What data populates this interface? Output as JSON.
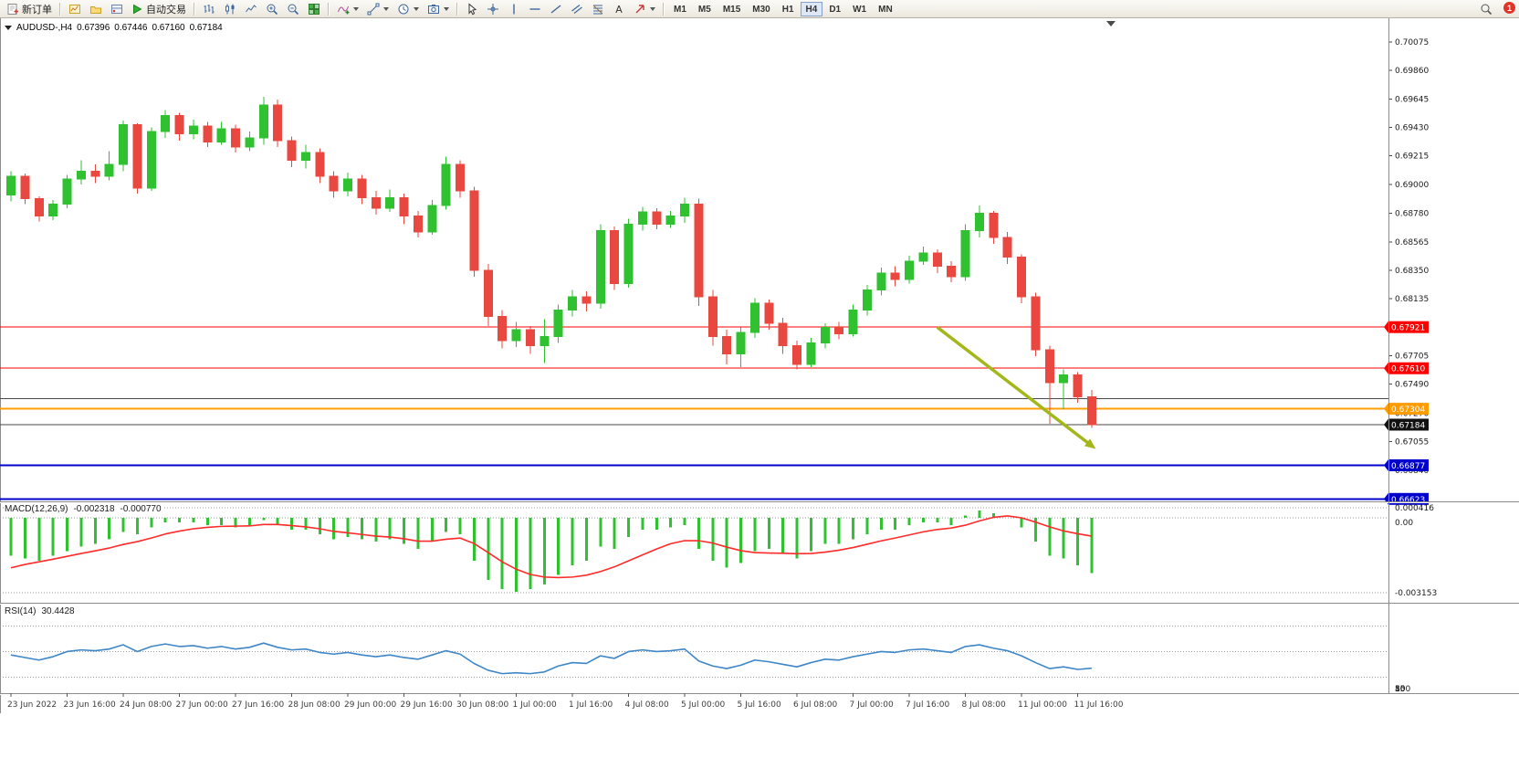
{
  "toolbar": {
    "new_order_label": "新订单",
    "autotrading_label": "自动交易",
    "left_icons": [
      "charts",
      "profiles",
      "terminal"
    ],
    "chart_icons": [
      "bar-chart",
      "candlestick-chart",
      "line-chart",
      "zoom-in",
      "zoom-out",
      "tile-windows"
    ],
    "tool_icons": [
      "indicators",
      "objects",
      "periods",
      "snapshot"
    ],
    "draw_icons": [
      "cursor",
      "crosshair",
      "vertical-line",
      "horizontal-line",
      "trendline",
      "equidistant-channel",
      "fibonacci",
      "text",
      "arrows"
    ],
    "caret_icons": [
      "indicators",
      "objects",
      "periods",
      "snapshot",
      "arrows"
    ],
    "right_icons": [
      "search"
    ],
    "timeframes": [
      "M1",
      "M5",
      "M15",
      "M30",
      "H1",
      "H4",
      "D1",
      "W1",
      "MN"
    ],
    "active_timeframe": "H4",
    "notification_count": "1"
  },
  "chart_data": {
    "type": "candlestick",
    "title": {
      "symbol_period": "AUDUSD-,H4",
      "open": "0.67396",
      "high": "0.67446",
      "low": "0.67160",
      "close": "0.67184"
    },
    "y_axis_ticks": [
      "0.70075",
      "0.69860",
      "0.69645",
      "0.69430",
      "0.69215",
      "0.69000",
      "0.68780",
      "0.68565",
      "0.68350",
      "0.68135",
      "0.67920",
      "0.67705",
      "0.67490",
      "0.67270",
      "0.67055",
      "0.66840",
      "0.66625"
    ],
    "x_labels": [
      "23 Jun 2022",
      "23 Jun 16:00",
      "24 Jun 08:00",
      "27 Jun 00:00",
      "27 Jun 16:00",
      "28 Jun 08:00",
      "29 Jun 00:00",
      "29 Jun 16:00",
      "30 Jun 08:00",
      "1 Jul 00:00",
      "1 Jul 16:00",
      "4 Jul 08:00",
      "5 Jul 00:00",
      "5 Jul 16:00",
      "6 Jul 08:00",
      "7 Jul 00:00",
      "7 Jul 16:00",
      "8 Jul 08:00",
      "11 Jul 00:00",
      "11 Jul 16:00"
    ],
    "x_label_every": 4,
    "candles": [
      [
        0.6892,
        0.691,
        0.6887,
        0.6906
      ],
      [
        0.6906,
        0.6908,
        0.6885,
        0.6889
      ],
      [
        0.6889,
        0.6891,
        0.6872,
        0.6876
      ],
      [
        0.6876,
        0.6888,
        0.6873,
        0.6885
      ],
      [
        0.6885,
        0.6907,
        0.6882,
        0.6904
      ],
      [
        0.6904,
        0.6918,
        0.69,
        0.691
      ],
      [
        0.691,
        0.6915,
        0.6901,
        0.6906
      ],
      [
        0.6906,
        0.6925,
        0.6903,
        0.6915
      ],
      [
        0.6915,
        0.6948,
        0.691,
        0.6945
      ],
      [
        0.6945,
        0.6946,
        0.6893,
        0.6897
      ],
      [
        0.6897,
        0.6943,
        0.6895,
        0.694
      ],
      [
        0.694,
        0.6956,
        0.6935,
        0.6952
      ],
      [
        0.6952,
        0.6954,
        0.6933,
        0.6938
      ],
      [
        0.6938,
        0.6949,
        0.6934,
        0.6944
      ],
      [
        0.6944,
        0.6947,
        0.6928,
        0.6932
      ],
      [
        0.6932,
        0.6947,
        0.693,
        0.6942
      ],
      [
        0.6942,
        0.6945,
        0.6924,
        0.6928
      ],
      [
        0.6928,
        0.694,
        0.6925,
        0.6935
      ],
      [
        0.6935,
        0.6966,
        0.693,
        0.696
      ],
      [
        0.696,
        0.6964,
        0.6928,
        0.6933
      ],
      [
        0.6933,
        0.6936,
        0.6913,
        0.6918
      ],
      [
        0.6918,
        0.693,
        0.6912,
        0.6924
      ],
      [
        0.6924,
        0.6927,
        0.6901,
        0.6906
      ],
      [
        0.6906,
        0.691,
        0.689,
        0.6895
      ],
      [
        0.6895,
        0.6909,
        0.6891,
        0.6904
      ],
      [
        0.6904,
        0.6907,
        0.6885,
        0.689
      ],
      [
        0.689,
        0.6895,
        0.6877,
        0.6882
      ],
      [
        0.6882,
        0.6896,
        0.6879,
        0.689
      ],
      [
        0.689,
        0.6893,
        0.687,
        0.6876
      ],
      [
        0.6876,
        0.688,
        0.686,
        0.6864
      ],
      [
        0.6864,
        0.6888,
        0.6862,
        0.6884
      ],
      [
        0.6884,
        0.6921,
        0.6881,
        0.6915
      ],
      [
        0.6915,
        0.6918,
        0.689,
        0.6895
      ],
      [
        0.6895,
        0.6898,
        0.683,
        0.6835
      ],
      [
        0.6835,
        0.684,
        0.6793,
        0.68
      ],
      [
        0.68,
        0.6805,
        0.6776,
        0.6782
      ],
      [
        0.6782,
        0.6796,
        0.6777,
        0.679
      ],
      [
        0.679,
        0.6793,
        0.6772,
        0.6778
      ],
      [
        0.6778,
        0.6798,
        0.6765,
        0.6785
      ],
      [
        0.6785,
        0.6809,
        0.678,
        0.6805
      ],
      [
        0.6805,
        0.682,
        0.68,
        0.6815
      ],
      [
        0.6815,
        0.6819,
        0.6804,
        0.681
      ],
      [
        0.681,
        0.687,
        0.6806,
        0.6865
      ],
      [
        0.6865,
        0.6868,
        0.682,
        0.6825
      ],
      [
        0.6825,
        0.6874,
        0.6822,
        0.687
      ],
      [
        0.687,
        0.6883,
        0.6865,
        0.6879
      ],
      [
        0.6879,
        0.6882,
        0.6866,
        0.687
      ],
      [
        0.687,
        0.688,
        0.6867,
        0.6876
      ],
      [
        0.6876,
        0.689,
        0.6871,
        0.6885
      ],
      [
        0.6885,
        0.6889,
        0.6808,
        0.6815
      ],
      [
        0.6815,
        0.682,
        0.6778,
        0.6785
      ],
      [
        0.6785,
        0.679,
        0.6764,
        0.6772
      ],
      [
        0.6772,
        0.6792,
        0.6762,
        0.6788
      ],
      [
        0.6788,
        0.6814,
        0.6784,
        0.681
      ],
      [
        0.681,
        0.6813,
        0.679,
        0.6795
      ],
      [
        0.6795,
        0.6799,
        0.6772,
        0.6778
      ],
      [
        0.6778,
        0.6782,
        0.676,
        0.6764
      ],
      [
        0.6764,
        0.6784,
        0.6762,
        0.678
      ],
      [
        0.678,
        0.6795,
        0.6776,
        0.6792
      ],
      [
        0.6792,
        0.6796,
        0.6783,
        0.6787
      ],
      [
        0.6787,
        0.6809,
        0.6785,
        0.6805
      ],
      [
        0.6805,
        0.6824,
        0.6801,
        0.682
      ],
      [
        0.682,
        0.6837,
        0.6816,
        0.6833
      ],
      [
        0.6833,
        0.6838,
        0.6823,
        0.6828
      ],
      [
        0.6828,
        0.6846,
        0.6825,
        0.6842
      ],
      [
        0.6842,
        0.6853,
        0.6839,
        0.6848
      ],
      [
        0.6848,
        0.6851,
        0.6833,
        0.6838
      ],
      [
        0.6838,
        0.6842,
        0.6826,
        0.683
      ],
      [
        0.683,
        0.687,
        0.6827,
        0.6865
      ],
      [
        0.6865,
        0.6884,
        0.686,
        0.6878
      ],
      [
        0.6878,
        0.688,
        0.6855,
        0.686
      ],
      [
        0.686,
        0.6864,
        0.684,
        0.6845
      ],
      [
        0.6845,
        0.6847,
        0.681,
        0.6815
      ],
      [
        0.6815,
        0.6818,
        0.677,
        0.6775
      ],
      [
        0.6775,
        0.6778,
        0.6719,
        0.675
      ],
      [
        0.675,
        0.676,
        0.673,
        0.6756
      ],
      [
        0.6756,
        0.6758,
        0.6735,
        0.67396
      ],
      [
        0.67396,
        0.67446,
        0.6716,
        0.67184
      ]
    ],
    "price_lines": [
      {
        "price": 0.67921,
        "label": "0.67921",
        "color": "#ff0000",
        "width": 1
      },
      {
        "price": 0.6761,
        "label": "0.67610",
        "color": "#ff0000",
        "width": 1
      },
      {
        "price": 0.6738,
        "label": "",
        "color": "#4a4a4a",
        "width": 1
      },
      {
        "price": 0.67304,
        "label": "0.67304",
        "color": "#ff9c00",
        "width": 2
      },
      {
        "price": 0.67184,
        "label": "0.67184",
        "color": "#4a4a4a",
        "width": 1,
        "badge": "#111111"
      },
      {
        "price": 0.66877,
        "label": "0.66877",
        "color": "#0000cd",
        "width": 2
      },
      {
        "price": 0.66623,
        "label": "0.66623",
        "color": "#0000cd",
        "width": 2
      }
    ],
    "arrow": {
      "from_candle": 66,
      "from_price": 0.6792,
      "to_candle": 77.3,
      "to_price": 0.67,
      "color": "#a3b71c"
    },
    "macd": {
      "label": "MACD(12,26,9)",
      "main_value": "-0.002318",
      "signal_value": "-0.000770",
      "scale_labels": {
        "upper": "0.000416",
        "zero": "0.00",
        "lower": "-0.003153"
      },
      "upper_level": 0.000416,
      "lower_level": -0.003153,
      "values": [
        -0.0016,
        -0.0017,
        -0.0018,
        -0.0016,
        -0.0014,
        -0.0012,
        -0.0011,
        -0.0009,
        -0.0006,
        -0.0007,
        -0.0004,
        -0.0002,
        -0.0002,
        -0.0002,
        -0.0003,
        -0.0003,
        -0.0004,
        -0.0003,
        -0.0001,
        -0.0003,
        -0.0005,
        -0.0005,
        -0.0007,
        -0.0009,
        -0.0008,
        -0.0009,
        -0.001,
        -0.0009,
        -0.0011,
        -0.0013,
        -0.001,
        -0.0006,
        -0.0007,
        -0.0018,
        -0.0026,
        -0.003,
        -0.0031,
        -0.003,
        -0.0028,
        -0.0024,
        -0.002,
        -0.0018,
        -0.0012,
        -0.0013,
        -0.0008,
        -0.0005,
        -0.0005,
        -0.0004,
        -0.0003,
        -0.0013,
        -0.0018,
        -0.0021,
        -0.0019,
        -0.0014,
        -0.0013,
        -0.0015,
        -0.0017,
        -0.0014,
        -0.0011,
        -0.0011,
        -0.0009,
        -0.0007,
        -0.0005,
        -0.0005,
        -0.0003,
        -0.0002,
        -0.0002,
        -0.0003,
        0.0001,
        0.0003,
        0.0002,
        0.0,
        -0.0004,
        -0.001,
        -0.0016,
        -0.0017,
        -0.002,
        -0.002318
      ],
      "signal": [
        -0.0021,
        -0.00196,
        -0.00185,
        -0.00174,
        -0.00162,
        -0.0015,
        -0.00139,
        -0.00127,
        -0.00112,
        -0.001,
        -0.00085,
        -0.00068,
        -0.00056,
        -0.00046,
        -0.0004,
        -0.00036,
        -0.00035,
        -0.00034,
        -0.00028,
        -0.00028,
        -0.00033,
        -0.00038,
        -0.00046,
        -0.00057,
        -0.00063,
        -0.0007,
        -0.00077,
        -0.00081,
        -0.00088,
        -0.00098,
        -0.00098,
        -0.0009,
        -0.00085,
        -0.00108,
        -0.00146,
        -0.00185,
        -0.00216,
        -0.00238,
        -0.00249,
        -0.00251,
        -0.00249,
        -0.00241,
        -0.00226,
        -0.00206,
        -0.00181,
        -0.00156,
        -0.00131,
        -0.00109,
        -0.00096,
        -0.00096,
        -0.00106,
        -0.00123,
        -0.00138,
        -0.00146,
        -0.00148,
        -0.00149,
        -0.00151,
        -0.0015,
        -0.00144,
        -0.00136,
        -0.00125,
        -0.00111,
        -0.00097,
        -0.00085,
        -0.00072,
        -0.00059,
        -0.00049,
        -0.00043,
        -0.00031,
        -0.00013,
        2e-05,
        8e-05,
        0.0,
        -0.00018,
        -0.00038,
        -0.00055,
        -0.00067,
        -0.00077
      ]
    },
    "rsi": {
      "label": "RSI(14)",
      "value": "30.4428",
      "scale_labels": [
        {
          "v": 100,
          "t": "100"
        },
        {
          "v": 80,
          "t": "80"
        },
        {
          "v": 50,
          "t": "50"
        },
        {
          "v": 15,
          "t": "15"
        }
      ],
      "levels": [
        80,
        50,
        20
      ],
      "range": [
        15,
        100
      ],
      "values": [
        46,
        43,
        40,
        44,
        50,
        52,
        51,
        53,
        58,
        50,
        56,
        59,
        56,
        57,
        54,
        56,
        53,
        55,
        60,
        55,
        52,
        53,
        49,
        47,
        49,
        46,
        44,
        46,
        43,
        41,
        46,
        51,
        47,
        36,
        28,
        24,
        25,
        24,
        26,
        33,
        37,
        36,
        45,
        42,
        50,
        52,
        50,
        51,
        53,
        39,
        33,
        30,
        34,
        40,
        38,
        35,
        32,
        37,
        41,
        40,
        44,
        47,
        50,
        49,
        52,
        53,
        51,
        49,
        56,
        58,
        54,
        51,
        45,
        37,
        30,
        32,
        29,
        30.44
      ]
    },
    "colors": {
      "bull": "#2fc12f",
      "bear": "#e8483f",
      "macd_hist": "#2fc12f",
      "macd_signal": "#ff2a2a",
      "rsi": "#3e86c8",
      "axis_text": "#1a1a1a",
      "date_text": "#3c3c3c"
    }
  }
}
